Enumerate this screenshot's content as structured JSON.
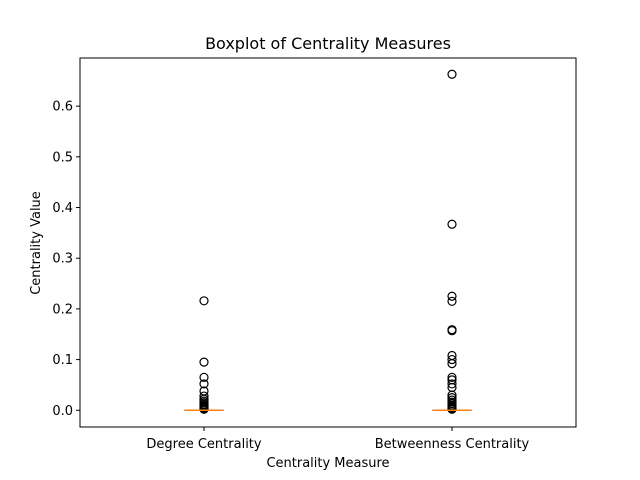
{
  "chart_data": {
    "type": "boxplot",
    "title": "Boxplot of Centrality Measures",
    "xlabel": "Centrality Measure",
    "ylabel": "Centrality Value",
    "categories": [
      "Degree Centrality",
      "Betweenness Centrality"
    ],
    "ylim": [
      -0.033,
      0.695
    ],
    "yticks": [
      0.0,
      0.1,
      0.2,
      0.3,
      0.4,
      0.5,
      0.6
    ],
    "ytick_labels": [
      "0.0",
      "0.1",
      "0.2",
      "0.3",
      "0.4",
      "0.5",
      "0.6"
    ],
    "grid": false,
    "colors": {
      "median": "#ff7f0e",
      "frame": "#000000",
      "flier": "#000000"
    },
    "boxes": [
      {
        "name": "Degree Centrality",
        "q1": 0.0,
        "median": 0.0,
        "q3": 0.0,
        "whisker_low": 0.0,
        "whisker_high": 0.0,
        "fliers": [
          0.216,
          0.095,
          0.065,
          0.052,
          0.038,
          0.028,
          0.022,
          0.018,
          0.015,
          0.012,
          0.01,
          0.008,
          0.006,
          0.005,
          0.004,
          0.003,
          0.002
        ]
      },
      {
        "name": "Betweenness Centrality",
        "q1": 0.0,
        "median": 0.0,
        "q3": 0.0,
        "whisker_low": 0.0,
        "whisker_high": 0.0,
        "fliers": [
          0.663,
          0.367,
          0.225,
          0.215,
          0.159,
          0.157,
          0.108,
          0.1,
          0.092,
          0.065,
          0.06,
          0.052,
          0.045,
          0.03,
          0.025,
          0.02,
          0.016,
          0.013,
          0.01,
          0.008,
          0.006,
          0.004,
          0.003,
          0.002
        ]
      }
    ]
  }
}
